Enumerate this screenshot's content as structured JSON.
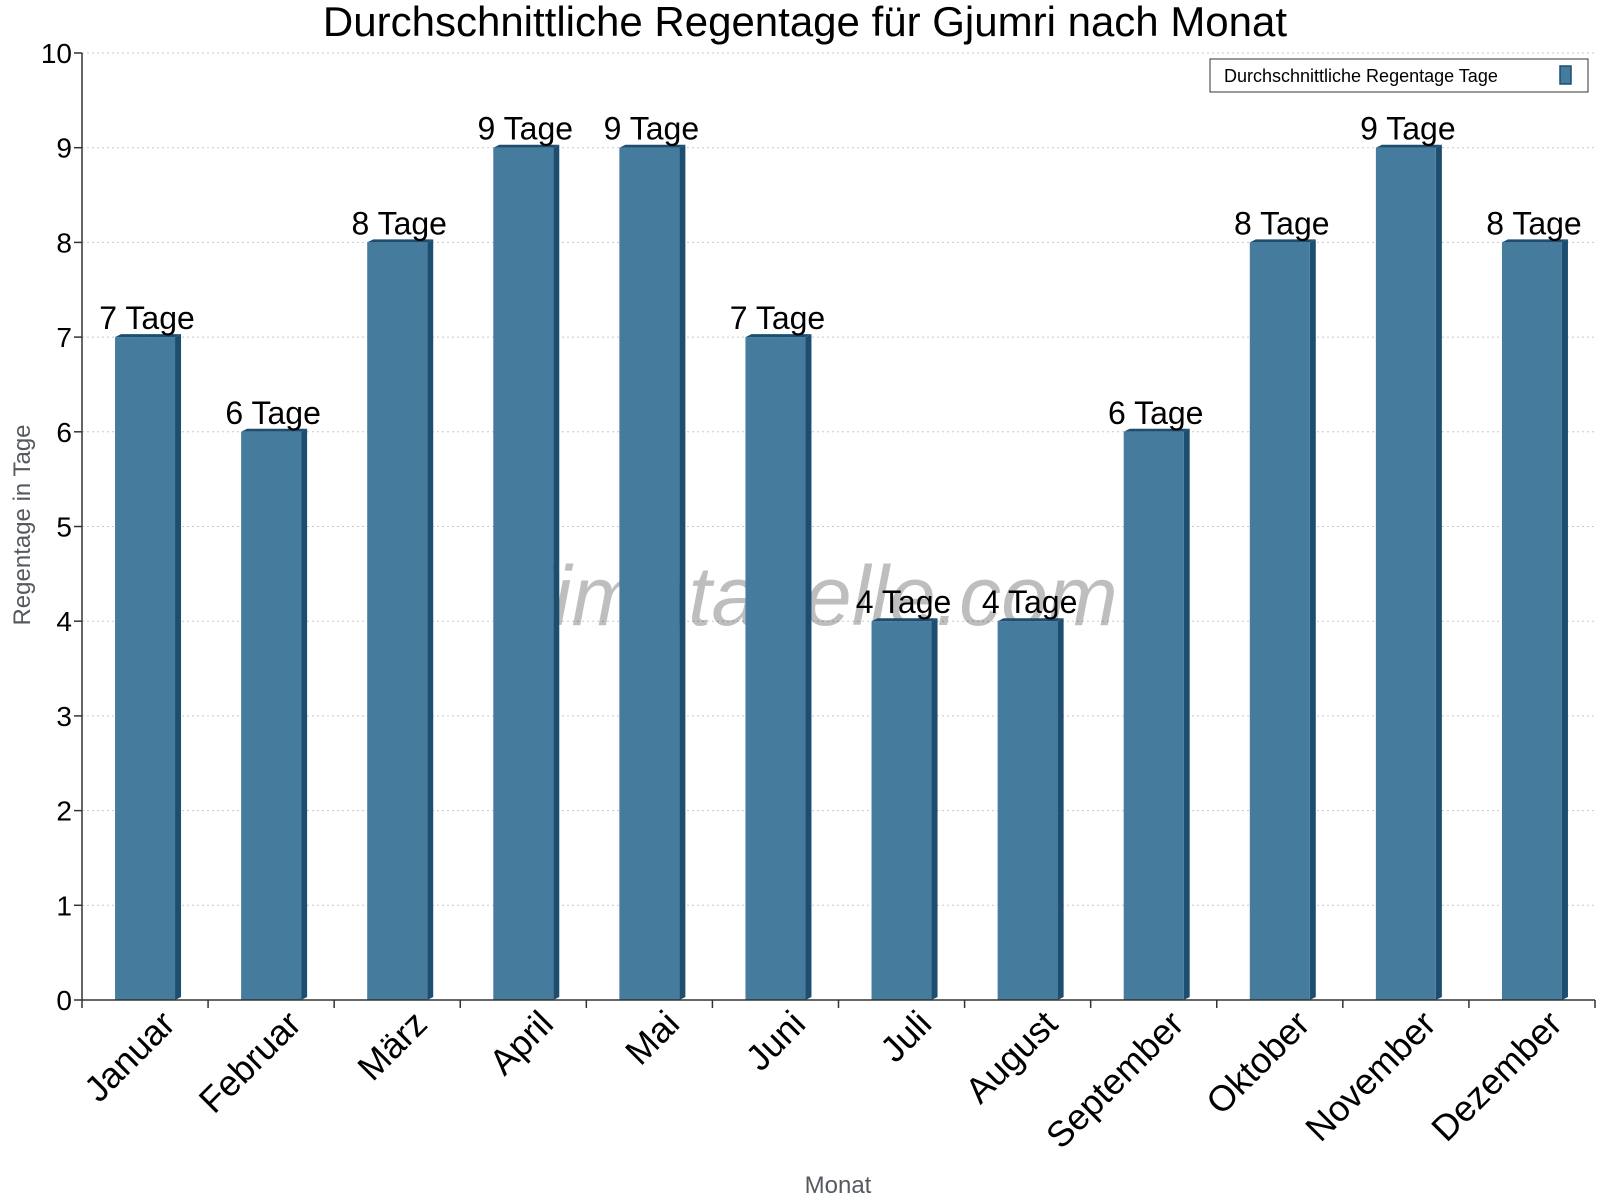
{
  "chart_data": {
    "type": "bar",
    "title": "Durchschnittliche Regentage für Gjumri nach Monat",
    "xlabel": "Monat",
    "ylabel": "Regentage in Tage",
    "ylim": [
      0,
      10
    ],
    "yticks": [
      "0",
      "1",
      "2",
      "3",
      "4",
      "5",
      "6",
      "7",
      "8",
      "9",
      "10"
    ],
    "categories": [
      "Januar",
      "Februar",
      "März",
      "April",
      "Mai",
      "Juni",
      "Juli",
      "August",
      "September",
      "Oktober",
      "November",
      "Dezember"
    ],
    "series": [
      {
        "name": "Durchschnittliche Regentage Tage",
        "values": [
          7,
          6,
          8,
          9,
          9,
          7,
          4,
          4,
          6,
          8,
          9,
          8
        ],
        "labels": [
          "7 Tage",
          "6 Tage",
          "8 Tage",
          "9 Tage",
          "9 Tage",
          "7 Tage",
          "4 Tage",
          "4 Tage",
          "6 Tage",
          "8 Tage",
          "9 Tage",
          "8 Tage"
        ],
        "color": "#457b9d",
        "side_color": "#1d4e70"
      }
    ],
    "grid": true,
    "legend_position": "top-right",
    "watermark": "klimatabelle.com"
  }
}
